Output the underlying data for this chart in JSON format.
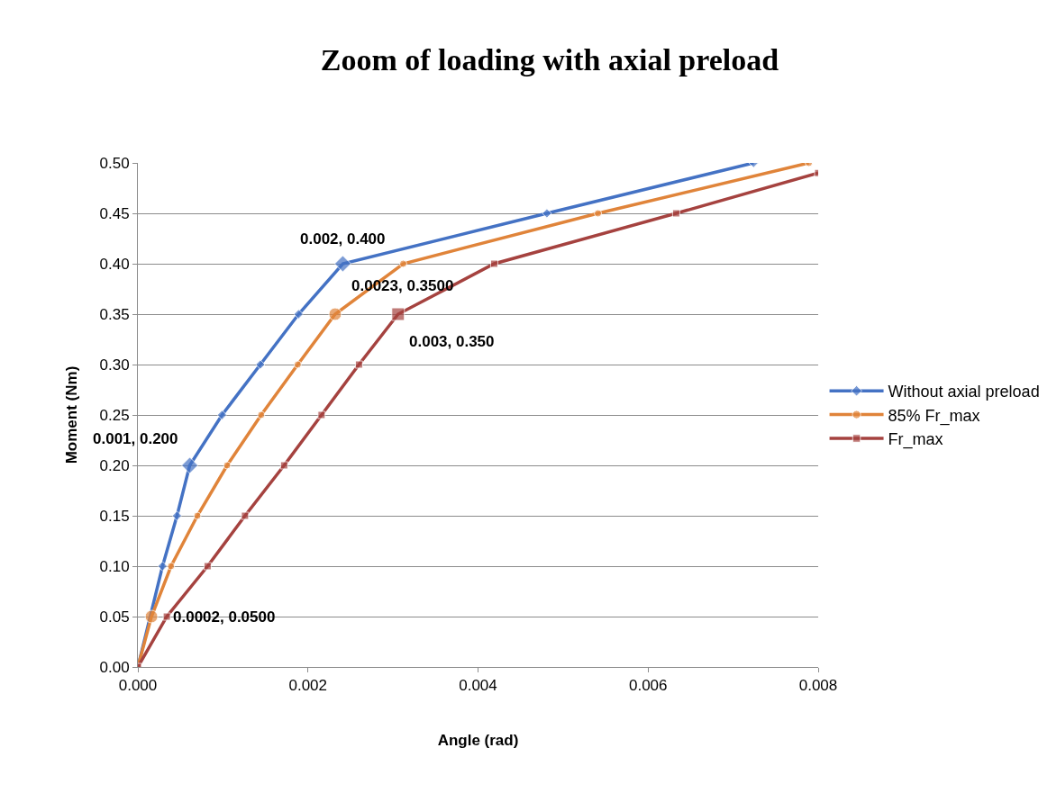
{
  "chart_data": {
    "type": "line",
    "title": "Zoom of loading with axial preload",
    "xlabel": "Angle (rad)",
    "ylabel": "Moment (Nm)",
    "xlim": [
      0,
      0.008
    ],
    "xticks": [
      {
        "value": 0,
        "label": "0.000"
      },
      {
        "value": 0.002,
        "label": "0.002"
      },
      {
        "value": 0.004,
        "label": "0.004"
      },
      {
        "value": 0.006,
        "label": "0.006"
      },
      {
        "value": 0.008,
        "label": "0.008"
      }
    ],
    "ylim": [
      0,
      0.5
    ],
    "yticks": [
      {
        "value": 0,
        "label": "0.00"
      },
      {
        "value": 0.05,
        "label": "0.05"
      },
      {
        "value": 0.1,
        "label": "0.10"
      },
      {
        "value": 0.15,
        "label": "0.15"
      },
      {
        "value": 0.2,
        "label": "0.20"
      },
      {
        "value": 0.25,
        "label": "0.25"
      },
      {
        "value": 0.3,
        "label": "0.30"
      },
      {
        "value": 0.35,
        "label": "0.35"
      },
      {
        "value": 0.4,
        "label": "0.40"
      },
      {
        "value": 0.45,
        "label": "0.45"
      },
      {
        "value": 0.5,
        "label": "0.50"
      }
    ],
    "grid": "y",
    "legend": "right",
    "series": [
      {
        "name": "Without axial preload",
        "color": "#4472c4",
        "marker": "diamond",
        "x": [
          0,
          null,
          0.00029,
          0.00046,
          0.00061,
          0.00099,
          0.00144,
          0.00189,
          0.00241,
          0.00481,
          0.00724
        ],
        "values": [
          0,
          null,
          0.1,
          0.15,
          0.2,
          0.25,
          0.3,
          0.35,
          0.4,
          0.45,
          0.5
        ]
      },
      {
        "name": "85% Fr_max",
        "color": "#e0843a",
        "marker": "circle",
        "x": [
          0,
          0.00016,
          0.00039,
          0.0007,
          0.00105,
          0.00145,
          0.00188,
          0.00232,
          0.00312,
          0.00541,
          0.00789
        ],
        "values": [
          0,
          0.05,
          0.1,
          0.15,
          0.2,
          0.25,
          0.3,
          0.35,
          0.4,
          0.45,
          0.5
        ]
      },
      {
        "name": "Fr_max",
        "color": "#a5423f",
        "marker": "square",
        "x": [
          0,
          0.00034,
          0.00082,
          0.00126,
          0.00172,
          0.00216,
          0.0026,
          0.00306,
          0.00419,
          0.00633,
          0.008
        ],
        "values": [
          0,
          0.05,
          0.1,
          0.15,
          0.2,
          0.25,
          0.3,
          0.35,
          0.4,
          0.45,
          0.49
        ]
      }
    ],
    "annotations": [
      {
        "text": "0.002, 0.400",
        "x": 0.00241,
        "y": 0.4
      },
      {
        "text": "0.0023, 0.3500",
        "x": 0.00232,
        "y": 0.35
      },
      {
        "text": "0.003, 0.350",
        "x": 0.00306,
        "y": 0.35
      },
      {
        "text": "0.001, 0.200",
        "x": 0.00061,
        "y": 0.2
      },
      {
        "text": "0.0002, 0.0500",
        "x": 0.00016,
        "y": 0.05
      }
    ]
  }
}
